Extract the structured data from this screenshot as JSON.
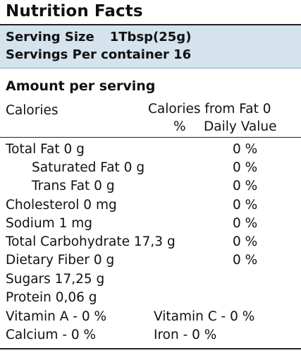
{
  "title": "Nutrition Facts",
  "serving": {
    "size_label": "Serving Size",
    "size_value": "1Tbsp(25g)",
    "servings_label": "Servings Per container 16"
  },
  "amount_heading": "Amount per serving",
  "calories_label": "Calories",
  "calories_from_fat": "Calories from Fat 0",
  "daily_value_header": {
    "percent": "%",
    "text": "Daily Value"
  },
  "nutrients": [
    {
      "label": "Total Fat 0 g",
      "dv": "0 %"
    },
    {
      "label": "Saturated Fat 0 g",
      "dv": "0 %"
    },
    {
      "label": "Trans Fat 0 g",
      "dv": "0 %"
    },
    {
      "label": "Cholesterol 0 mg",
      "dv": "0 %"
    },
    {
      "label": "Sodium 1 mg",
      "dv": "0 %"
    },
    {
      "label": "Total Carbohydrate 17,3 g",
      "dv": "0 %"
    },
    {
      "label": "Dietary Fiber 0 g",
      "dv": "0 %"
    },
    {
      "label": "Sugars 17,25 g"
    },
    {
      "label": "Protein 0,06 g"
    }
  ],
  "vitamins": {
    "vitamin_a": "Vitamin A - 0 %",
    "vitamin_c": "Vitamin C - 0 %",
    "calcium": "Calcium - 0 %",
    "iron": "Iron - 0 %"
  }
}
